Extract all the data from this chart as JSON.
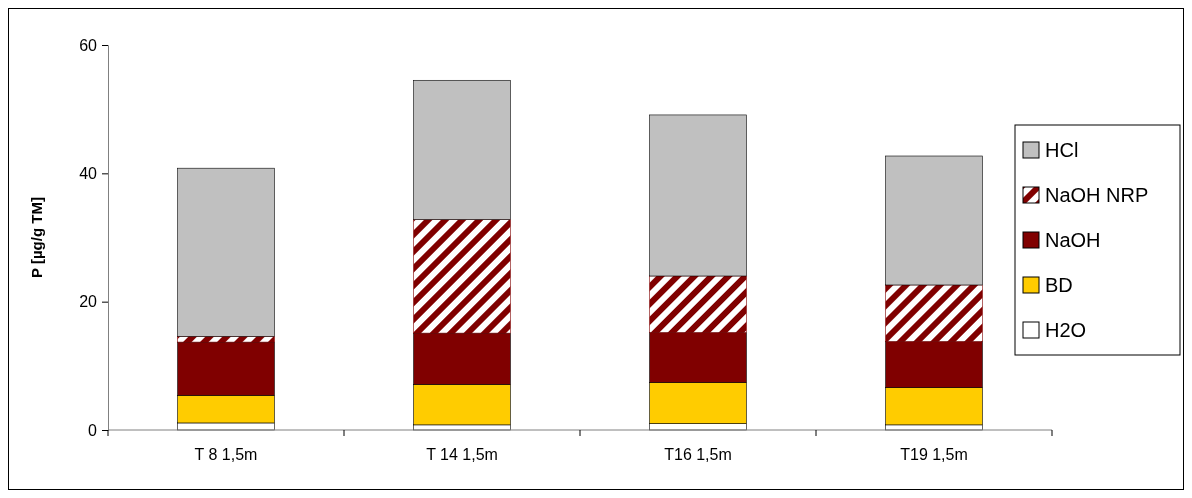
{
  "chart_data": {
    "type": "bar",
    "stacked": true,
    "ylabel": "P [µg/g TM]",
    "categories": [
      "T 8 1,5m",
      "T 14 1,5m",
      "T16 1,5m",
      "T19 1,5m"
    ],
    "ylim": [
      0,
      60
    ],
    "yticks": [
      0,
      20,
      40,
      60
    ],
    "grid": false,
    "legend": "right",
    "series": [
      {
        "name": "H2O",
        "color": "#ffffff",
        "values": [
          1.1,
          0.8,
          1.0,
          0.8
        ]
      },
      {
        "name": "BD",
        "color": "#ffcc00",
        "values": [
          4.3,
          6.3,
          6.4,
          5.8
        ]
      },
      {
        "name": "NaOH",
        "color": "#800000",
        "values": [
          8.3,
          8.0,
          7.8,
          7.2
        ]
      },
      {
        "name": "NaOH NRP",
        "color": "#800000",
        "values": [
          0.9,
          17.7,
          8.8,
          8.8
        ]
      },
      {
        "name": "HCl",
        "color": "#c0c0c0",
        "values": [
          26.2,
          21.7,
          25.1,
          20.1
        ]
      }
    ]
  }
}
